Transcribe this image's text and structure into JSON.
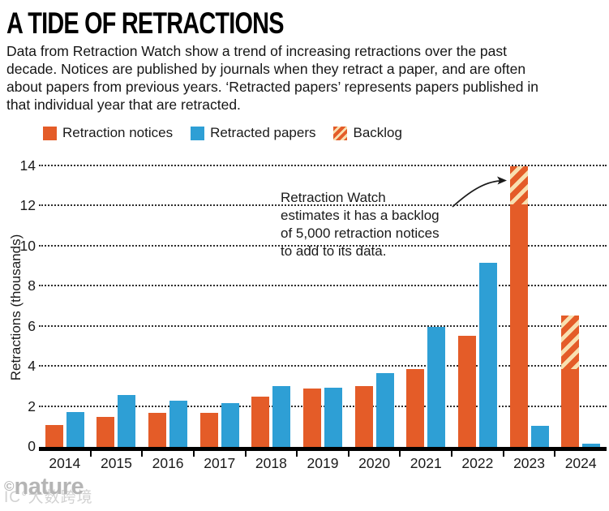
{
  "header": {
    "title": "A TIDE OF RETRACTIONS",
    "description": "Data from Retraction Watch show a trend of increasing retractions over the past\ndecade. Notices are published by journals when they retract a paper, and are often\nabout papers from previous years. ‘Retracted papers’ represents papers published in\nthat individual year that are retracted."
  },
  "legend": {
    "items": [
      {
        "label": "Retraction notices",
        "style": "solid",
        "color": "#e45c28"
      },
      {
        "label": "Retracted papers",
        "style": "solid",
        "color": "#2e9fd5"
      },
      {
        "label": "Backlog",
        "style": "hatched",
        "colors": [
          "#e45c28",
          "#f8e0b0"
        ]
      }
    ]
  },
  "chart_data": {
    "type": "bar",
    "title": "A TIDE OF RETRACTIONS",
    "categories": [
      "2014",
      "2015",
      "2016",
      "2017",
      "2018",
      "2019",
      "2020",
      "2021",
      "2022",
      "2023",
      "2024"
    ],
    "series": [
      {
        "name": "Retraction notices",
        "color": "#e45c28",
        "values": [
          1.1,
          1.5,
          1.7,
          1.7,
          2.5,
          2.9,
          3.05,
          3.9,
          5.55,
          12.1,
          3.9
        ]
      },
      {
        "name": "Retracted papers",
        "color": "#2e9fd5",
        "values": [
          1.75,
          2.6,
          2.3,
          2.2,
          3.05,
          2.95,
          3.7,
          6.0,
          9.2,
          1.05,
          0.15
        ]
      },
      {
        "name": "Backlog",
        "pattern": "diagonal-hatch",
        "colors": [
          "#e45c28",
          "#f8e0b0"
        ],
        "stacked_on": "Retraction notices",
        "values": [
          0,
          0,
          0,
          0,
          0,
          0,
          0,
          0,
          0,
          1.9,
          2.65
        ]
      }
    ],
    "xlabel": "",
    "ylabel": "Retractions (thousands)",
    "yticks": [
      0,
      2,
      4,
      6,
      8,
      10,
      12,
      14
    ],
    "ylim": [
      0,
      14
    ],
    "grid": "horizontal-dotted",
    "legend_position": "top"
  },
  "annotation": {
    "text": "Retraction Watch\nestimates it has a backlog\nof 5,000 retraction notices\nto add to its data."
  },
  "footer": {
    "copyright": "©",
    "brand": "nature",
    "watermark": "IC°大数跨境"
  }
}
